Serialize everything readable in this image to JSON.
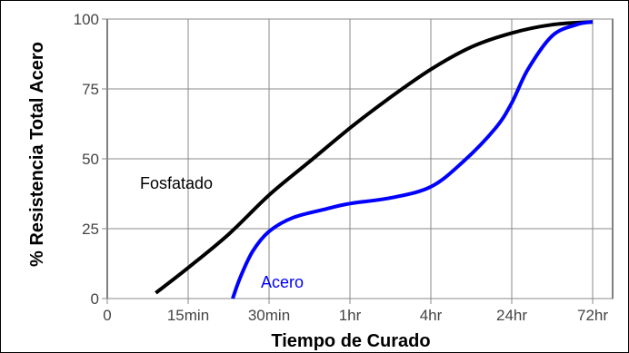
{
  "chart_data": {
    "type": "line",
    "title": "",
    "xlabel": "Tiempo de Curado",
    "ylabel": "% Resistencia Total Acero",
    "x_categories": [
      "0",
      "15min",
      "30min",
      "1hr",
      "4hr",
      "24hr",
      "72hr"
    ],
    "yticks": [
      0,
      25,
      50,
      75,
      100
    ],
    "ylim": [
      0,
      100
    ],
    "grid": true,
    "series": [
      {
        "name": "Fosfatado",
        "color": "#000000",
        "points": [
          [
            0.6,
            2
          ],
          [
            1.0,
            11
          ],
          [
            1.5,
            23
          ],
          [
            2.0,
            37
          ],
          [
            2.5,
            49
          ],
          [
            3.0,
            61
          ],
          [
            3.5,
            72
          ],
          [
            4.0,
            82
          ],
          [
            4.5,
            90
          ],
          [
            5.0,
            95
          ],
          [
            5.5,
            98
          ],
          [
            6.0,
            99
          ]
        ]
      },
      {
        "name": "Acero",
        "color": "#0000ff",
        "points": [
          [
            1.55,
            0
          ],
          [
            1.65,
            8
          ],
          [
            1.8,
            17
          ],
          [
            2.0,
            24
          ],
          [
            2.3,
            29
          ],
          [
            2.7,
            32
          ],
          [
            3.0,
            34
          ],
          [
            3.5,
            36
          ],
          [
            4.0,
            40
          ],
          [
            4.4,
            49
          ],
          [
            4.8,
            61
          ],
          [
            5.0,
            70
          ],
          [
            5.2,
            82
          ],
          [
            5.5,
            94
          ],
          [
            5.8,
            98
          ],
          [
            6.0,
            99
          ]
        ]
      }
    ]
  }
}
